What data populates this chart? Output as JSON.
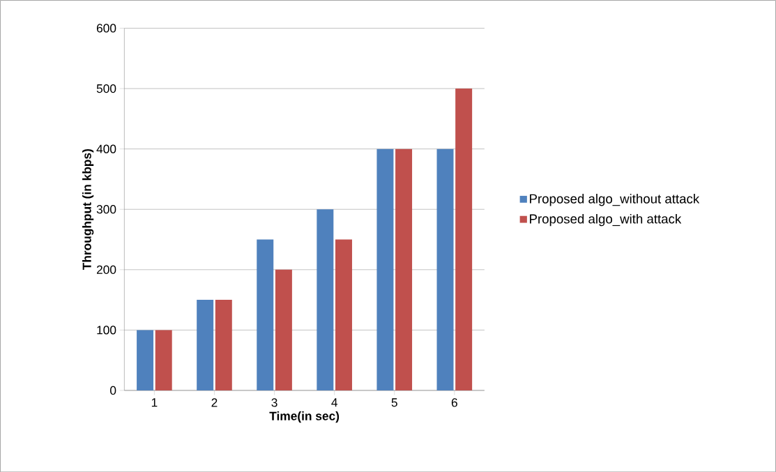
{
  "chart_data": {
    "type": "bar",
    "xlabel": "Time(in sec)",
    "ylabel": "Throughput (in kbps)",
    "categories": [
      "1",
      "2",
      "3",
      "4",
      "5",
      "6"
    ],
    "series": [
      {
        "name": "Proposed algo_without attack",
        "color": "#4f81bd",
        "values": [
          100,
          150,
          250,
          300,
          400,
          400
        ]
      },
      {
        "name": "Proposed algo_with attack",
        "color": "#c0504d",
        "values": [
          100,
          150,
          200,
          250,
          400,
          500
        ]
      }
    ],
    "ylim": [
      0,
      600
    ],
    "yticks": [
      0,
      100,
      200,
      300,
      400,
      500,
      600
    ],
    "grid": "y",
    "legend": "right"
  }
}
